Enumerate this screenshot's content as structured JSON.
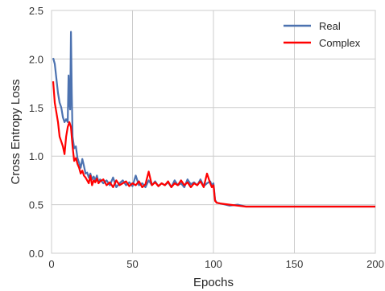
{
  "chart_data": {
    "type": "line",
    "xlabel": "Epochs",
    "ylabel": "Cross Entropy Loss",
    "xlim": [
      0,
      200
    ],
    "ylim": [
      0,
      2.5
    ],
    "xticks": [
      "0",
      "50",
      "100",
      "150",
      "200"
    ],
    "yticks": [
      "0.0",
      "0.5",
      "1.0",
      "1.5",
      "2.0",
      "2.5"
    ],
    "grid": true,
    "legend_position": "top-right",
    "series": [
      {
        "name": "Real",
        "color": "#4c72b0",
        "x": [
          1,
          2,
          3,
          4,
          5,
          6,
          7,
          8,
          9,
          10,
          10.5,
          11,
          11.5,
          12,
          12.5,
          13,
          14,
          15,
          16,
          17,
          18,
          19,
          20,
          21,
          22,
          23,
          24,
          25,
          26,
          27,
          28,
          29,
          30,
          32,
          34,
          36,
          38,
          40,
          42,
          44,
          46,
          48,
          50,
          52,
          54,
          56,
          58,
          60,
          62,
          64,
          66,
          68,
          70,
          72,
          74,
          76,
          78,
          80,
          82,
          84,
          86,
          88,
          90,
          92,
          94,
          96,
          98,
          99,
          100,
          101,
          102,
          105,
          110,
          115,
          120,
          125,
          130,
          140,
          150,
          160,
          170,
          180,
          190,
          200
        ],
        "y": [
          2.01,
          1.95,
          1.8,
          1.65,
          1.55,
          1.5,
          1.4,
          1.35,
          1.38,
          1.35,
          1.83,
          1.55,
          1.48,
          2.28,
          1.65,
          1.2,
          1.08,
          1.1,
          0.98,
          0.93,
          0.88,
          0.97,
          0.9,
          0.82,
          0.83,
          0.78,
          0.82,
          0.76,
          0.79,
          0.75,
          0.8,
          0.73,
          0.76,
          0.72,
          0.75,
          0.7,
          0.78,
          0.68,
          0.72,
          0.75,
          0.7,
          0.73,
          0.69,
          0.8,
          0.7,
          0.72,
          0.68,
          0.75,
          0.7,
          0.74,
          0.69,
          0.72,
          0.7,
          0.73,
          0.68,
          0.75,
          0.7,
          0.72,
          0.68,
          0.76,
          0.71,
          0.73,
          0.7,
          0.76,
          0.69,
          0.72,
          0.74,
          0.7,
          0.72,
          0.55,
          0.52,
          0.51,
          0.49,
          0.5,
          0.48,
          0.48,
          0.48,
          0.48,
          0.48,
          0.48,
          0.48,
          0.48,
          0.48,
          0.48
        ]
      },
      {
        "name": "Complex",
        "color": "#ff0000",
        "x": [
          1,
          2,
          3,
          4,
          5,
          6,
          7,
          8,
          9,
          10,
          11,
          12,
          13,
          14,
          15,
          16,
          17,
          18,
          19,
          20,
          21,
          22,
          23,
          24,
          25,
          26,
          27,
          28,
          29,
          30,
          32,
          34,
          36,
          38,
          40,
          42,
          44,
          46,
          48,
          50,
          52,
          54,
          56,
          58,
          60,
          62,
          64,
          66,
          68,
          70,
          72,
          74,
          76,
          78,
          80,
          82,
          84,
          86,
          88,
          90,
          92,
          94,
          96,
          98,
          99,
          100,
          101,
          102,
          105,
          110,
          115,
          120,
          125,
          130,
          140,
          150,
          160,
          170,
          180,
          190,
          200
        ],
        "y": [
          1.77,
          1.55,
          1.45,
          1.35,
          1.2,
          1.15,
          1.1,
          1.02,
          1.2,
          1.3,
          1.35,
          1.3,
          1.1,
          0.95,
          0.98,
          0.92,
          0.88,
          0.82,
          0.85,
          0.8,
          0.78,
          0.75,
          0.72,
          0.8,
          0.7,
          0.75,
          0.73,
          0.77,
          0.72,
          0.74,
          0.76,
          0.7,
          0.73,
          0.68,
          0.75,
          0.7,
          0.72,
          0.74,
          0.69,
          0.72,
          0.7,
          0.74,
          0.68,
          0.71,
          0.84,
          0.7,
          0.73,
          0.69,
          0.72,
          0.7,
          0.74,
          0.68,
          0.72,
          0.7,
          0.75,
          0.7,
          0.73,
          0.68,
          0.72,
          0.7,
          0.74,
          0.68,
          0.82,
          0.72,
          0.68,
          0.7,
          0.54,
          0.52,
          0.51,
          0.5,
          0.49,
          0.48,
          0.48,
          0.48,
          0.48,
          0.48,
          0.48,
          0.48,
          0.48,
          0.48,
          0.48
        ]
      }
    ]
  }
}
